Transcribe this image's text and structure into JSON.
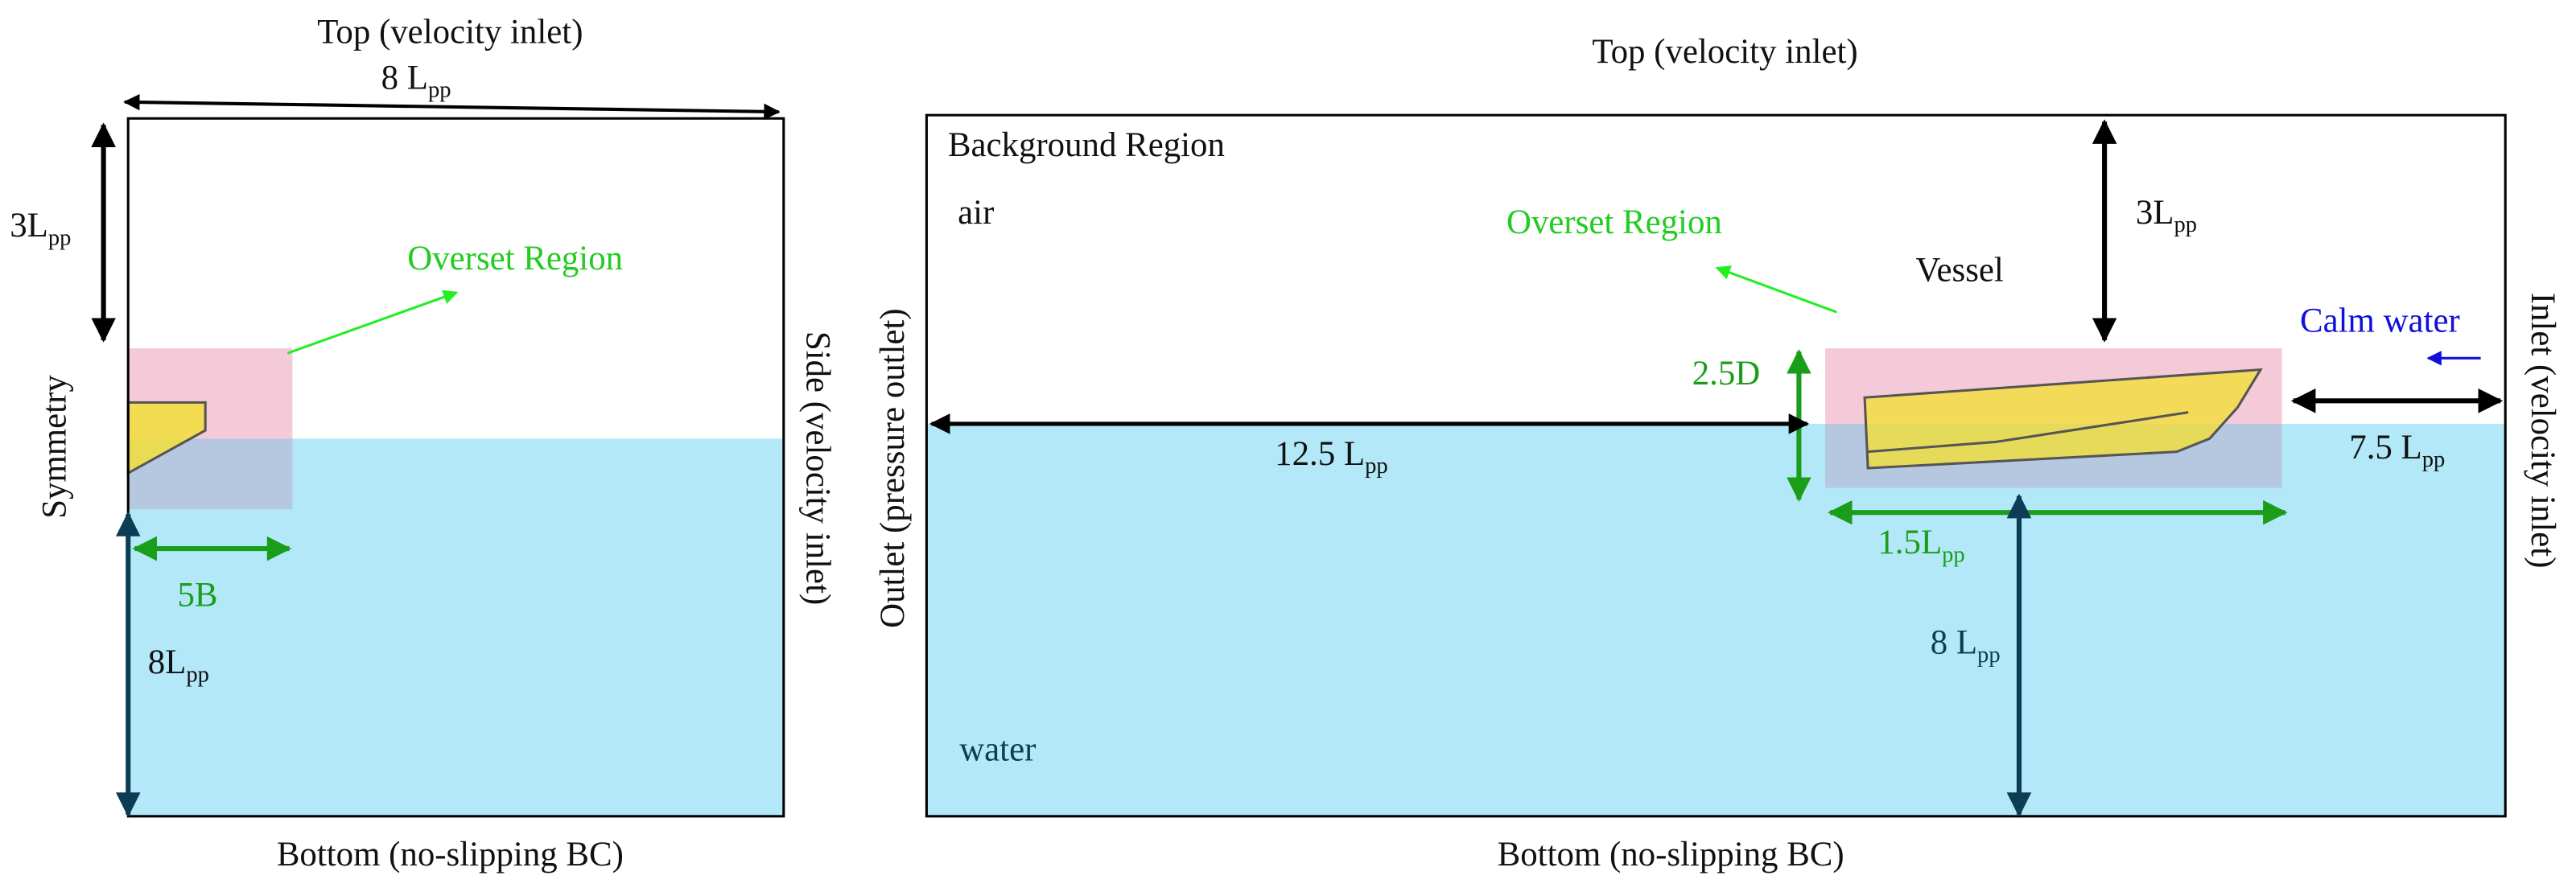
{
  "left_panel": {
    "top": "Top (velocity inlet)",
    "bottom": "Bottom (no-slipping BC)",
    "left": "Symmetry",
    "right": "Side (velocity inlet)",
    "overset": "Overset Region",
    "width": {
      "text": "8 L",
      "sub": "pp"
    },
    "air_height": {
      "text": "3L",
      "sub": "pp"
    },
    "overset_width": "5B",
    "depth": {
      "text": "8L",
      "sub": "pp"
    }
  },
  "right_panel": {
    "top": "Top (velocity inlet)",
    "bottom": "Bottom (no-slipping BC)",
    "outlet": "Outlet (pressure outlet)",
    "inlet": "Inlet (velocity inlet)",
    "background": "Background Region",
    "air": "air",
    "water": "water",
    "overset": "Overset Region",
    "vessel": "Vessel",
    "calm_water": "Calm water",
    "air_height": {
      "text": "3L",
      "sub": "pp"
    },
    "overset_height": "2.5D",
    "upstream": {
      "text": "12.5 L",
      "sub": "pp"
    },
    "downstream": {
      "text": "7.5 L",
      "sub": "pp"
    },
    "overset_length": {
      "text": "1.5L",
      "sub": "pp"
    },
    "depth": {
      "text": "8 L",
      "sub": "pp"
    }
  }
}
